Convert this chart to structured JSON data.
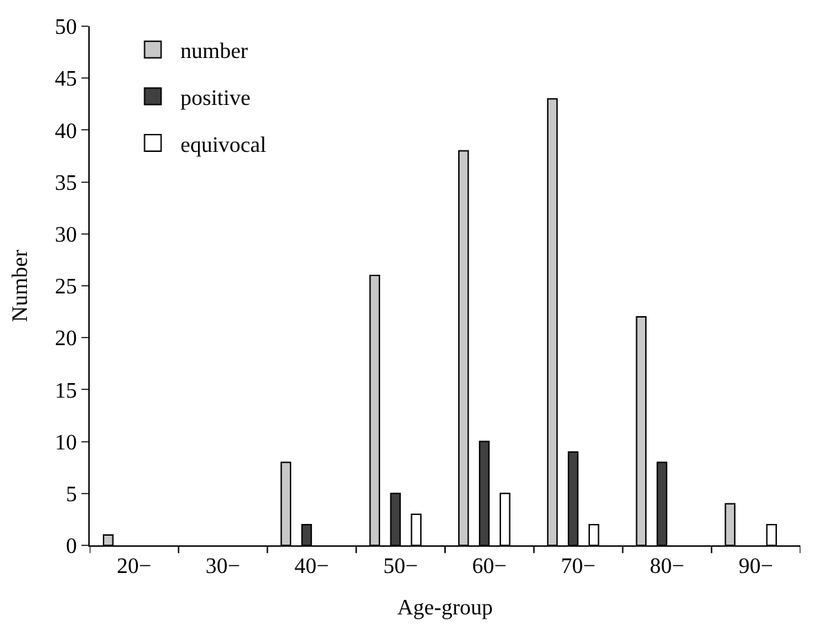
{
  "chart_data": {
    "type": "bar",
    "xlabel": "Age-group",
    "ylabel": "Number",
    "categories": [
      "20−",
      "30−",
      "40−",
      "50−",
      "60−",
      "70−",
      "80−",
      "90−"
    ],
    "series": [
      {
        "name": "number",
        "color": "#c8c8c8",
        "values": [
          1,
          0,
          8,
          26,
          38,
          43,
          22,
          4
        ]
      },
      {
        "name": "positive",
        "color": "#404040",
        "values": [
          0,
          0,
          2,
          5,
          10,
          9,
          8,
          0
        ]
      },
      {
        "name": "equivocal",
        "color": "#ffffff",
        "values": [
          0,
          0,
          0,
          3,
          5,
          2,
          0,
          2
        ]
      }
    ],
    "ylim": [
      0,
      50
    ],
    "yticks": [
      0,
      5,
      10,
      15,
      20,
      25,
      30,
      35,
      40,
      45,
      50
    ],
    "legend": "top left"
  }
}
